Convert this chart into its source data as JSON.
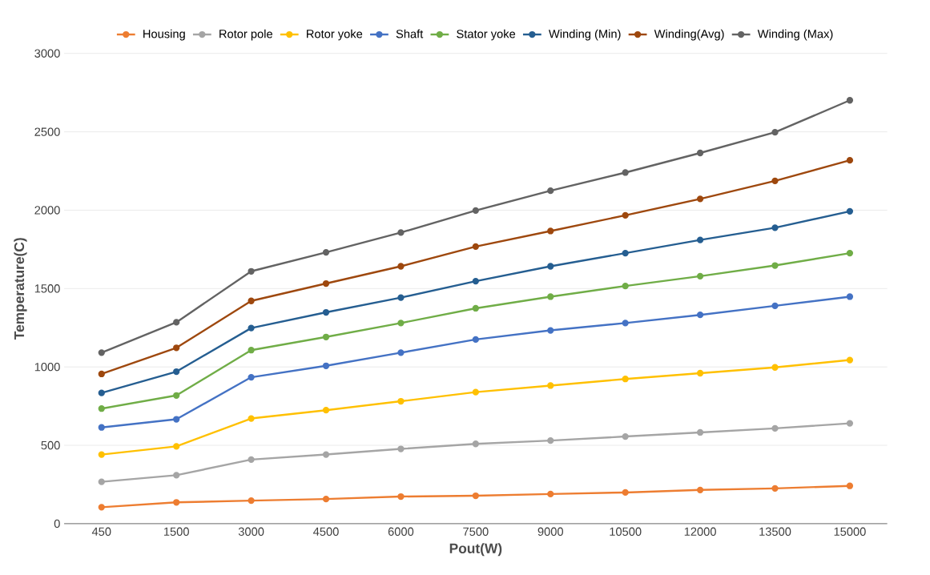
{
  "chart_data": {
    "type": "line",
    "xlabel": "Pout(W)",
    "ylabel": "Temperature(C)",
    "categories": [
      "450",
      "1500",
      "3000",
      "4500",
      "6000",
      "7500",
      "9000",
      "10500",
      "12000",
      "13500",
      "15000"
    ],
    "ylim": [
      0,
      3000
    ],
    "yticks": [
      0,
      500,
      1000,
      1500,
      2000,
      2500,
      3000
    ],
    "grid": "y",
    "legend": "top",
    "marker": "circle",
    "line_style": "solid",
    "series": [
      {
        "name": "Housing",
        "color": "#ed7d31",
        "values": [
          105,
          136,
          147,
          157,
          173,
          178,
          189,
          199,
          215,
          225,
          241
        ]
      },
      {
        "name": "Rotor pole",
        "color": "#a5a5a5",
        "values": [
          267,
          309,
          409,
          441,
          477,
          509,
          530,
          556,
          582,
          608,
          640
        ]
      },
      {
        "name": "Rotor yoke",
        "color": "#ffc000",
        "values": [
          441,
          493,
          671,
          724,
          781,
          839,
          881,
          923,
          960,
          997,
          1044
        ]
      },
      {
        "name": "Shaft",
        "color": "#4472c4",
        "values": [
          614,
          666,
          934,
          1007,
          1091,
          1175,
          1233,
          1280,
          1332,
          1390,
          1448
        ]
      },
      {
        "name": "Stator yoke",
        "color": "#70ad47",
        "values": [
          734,
          818,
          1107,
          1191,
          1280,
          1374,
          1448,
          1516,
          1579,
          1647,
          1726
        ]
      },
      {
        "name": "Winding (Min)",
        "color": "#255e91",
        "values": [
          834,
          970,
          1248,
          1348,
          1442,
          1547,
          1642,
          1726,
          1810,
          1888,
          1993
        ]
      },
      {
        "name": "Winding(Avg)",
        "color": "#9e480e",
        "values": [
          955,
          1122,
          1421,
          1532,
          1642,
          1768,
          1867,
          1967,
          2072,
          2187,
          2318
        ]
      },
      {
        "name": "Winding (Max)",
        "color": "#636363",
        "values": [
          1091,
          1285,
          1610,
          1731,
          1857,
          1998,
          2124,
          2240,
          2365,
          2497,
          2701
        ]
      }
    ]
  }
}
